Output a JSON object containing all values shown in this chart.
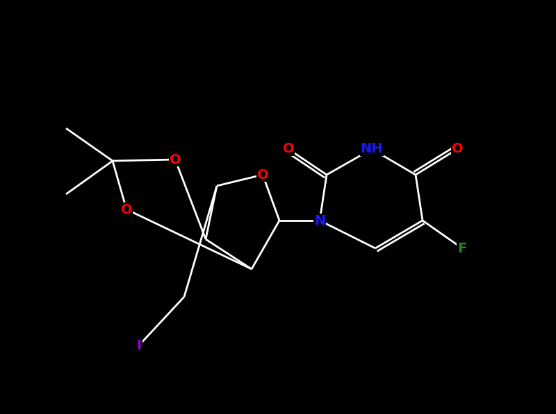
{
  "background_color": "#000000",
  "bond_color": "#ffffff",
  "atom_colors": {
    "O": "#ff0000",
    "N": "#1a1aff",
    "F": "#228b22",
    "I": "#9400d3",
    "H": "#ffffff"
  },
  "figsize": [
    8.0,
    5.97
  ],
  "dpi": 100,
  "lw": 2.0,
  "fontsize": 14
}
